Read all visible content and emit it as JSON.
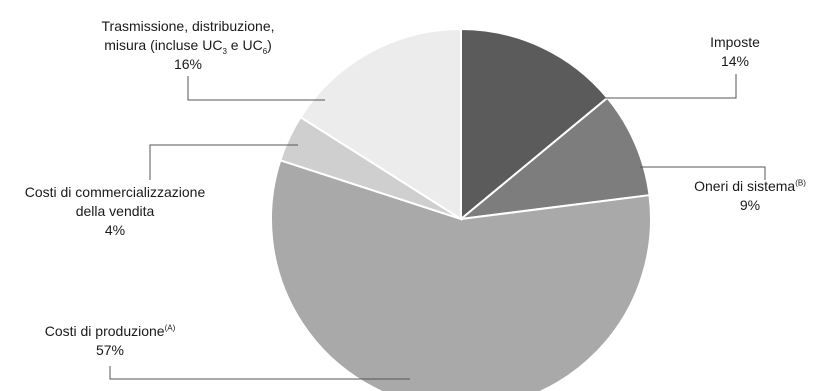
{
  "chart_data": {
    "type": "pie",
    "title": "",
    "slices": [
      {
        "key": "imposte",
        "label": "Imposte",
        "value": 14,
        "display": "14%",
        "color": "#5b5b5b"
      },
      {
        "key": "oneri",
        "label": "Oneri di sistema",
        "sup": "(B)",
        "value": 9,
        "display": "9%",
        "color": "#7d7d7d"
      },
      {
        "key": "produzione",
        "label": "Costi di produzione",
        "sup": "(A)",
        "value": 57,
        "display": "57%",
        "color": "#a9a9a9"
      },
      {
        "key": "commerc",
        "label_lines": [
          "Costi di commercializzazione",
          "della vendita"
        ],
        "value": 4,
        "display": "4%",
        "color": "#cfcfcf"
      },
      {
        "key": "trasm",
        "label_lines": [
          "Trasmissione, distribuzione,",
          "misura (incluse UC",
          "3",
          " e UC",
          "6",
          ")"
        ],
        "value": 16,
        "display": "16%",
        "color": "#ececec"
      }
    ]
  }
}
